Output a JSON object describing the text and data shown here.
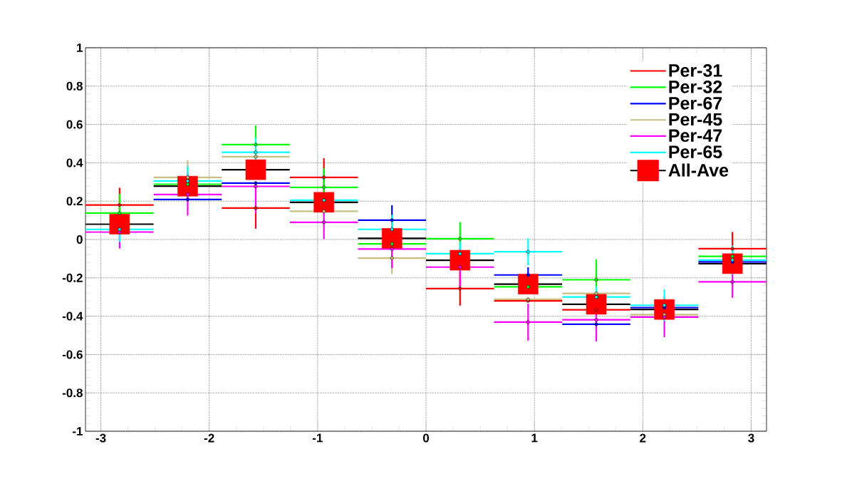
{
  "chart_data": {
    "type": "scatter",
    "x": [
      -2.827,
      -2.199,
      -1.571,
      -0.942,
      -0.314,
      0.314,
      0.942,
      1.571,
      2.199,
      2.827
    ],
    "xlim": [
      -3.1416,
      3.1416
    ],
    "xticks": [
      -3,
      -2,
      -1,
      0,
      1,
      2,
      3
    ],
    "ylim": [
      -1,
      1
    ],
    "yticks": [
      -1,
      -0.8,
      -0.6,
      -0.4,
      -0.2,
      0,
      0.2,
      0.4,
      0.6,
      0.8,
      1
    ],
    "grid": true,
    "legend": "top right",
    "marker": "circle",
    "series": [
      {
        "name": "Per-31",
        "color": "#ff0000",
        "values": [
          0.18,
          null,
          0.164,
          0.324,
          null,
          -0.256,
          -0.32,
          -0.367,
          null,
          -0.048
        ],
        "errors": [
          0.09,
          null,
          0.108,
          0.1,
          null,
          0.089,
          null,
          null,
          null,
          0.087
        ],
        "xerrors": [
          0.314,
          null,
          0.314,
          0.314,
          null,
          0.314,
          0.314,
          0.314,
          null,
          0.314
        ]
      },
      {
        "name": "Per-32",
        "color": "#00ff00",
        "values": [
          0.138,
          0.288,
          0.495,
          0.272,
          -0.023,
          0.004,
          -0.247,
          -0.21,
          null,
          -0.088
        ],
        "errors": [
          0.1,
          null,
          0.1,
          0.1,
          null,
          0.087,
          null,
          0.107,
          null,
          null
        ],
        "xerrors": [
          0.314,
          0.314,
          0.314,
          0.314,
          0.314,
          0.314,
          0.314,
          0.314,
          null,
          0.314
        ]
      },
      {
        "name": "Per-67",
        "color": "#0000ff",
        "values": [
          null,
          0.209,
          0.294,
          null,
          0.101,
          null,
          -0.185,
          -0.442,
          -0.355,
          -0.117
        ],
        "errors": [
          null,
          null,
          null,
          null,
          0.078,
          null,
          0.04,
          null,
          null,
          null
        ],
        "xerrors": [
          null,
          0.314,
          0.314,
          null,
          0.314,
          null,
          0.314,
          0.314,
          0.314,
          0.314
        ]
      },
      {
        "name": "Per-45",
        "color": "#c8c080",
        "values": [
          null,
          0.324,
          0.432,
          0.147,
          -0.097,
          null,
          -0.312,
          -0.281,
          -0.392,
          null
        ],
        "errors": [
          null,
          0.09,
          null,
          null,
          0.083,
          null,
          null,
          null,
          null,
          null
        ],
        "xerrors": [
          null,
          0.314,
          0.314,
          0.314,
          0.314,
          null,
          0.314,
          0.314,
          0.314,
          null
        ]
      },
      {
        "name": "Per-47",
        "color": "#ff00ff",
        "values": [
          0.039,
          0.235,
          0.277,
          0.09,
          -0.05,
          -0.144,
          -0.431,
          -0.419,
          -0.405,
          -0.221
        ],
        "errors": [
          0.086,
          0.11,
          [
            0.137,
            0.277
          ],
          0.088,
          0.1,
          0.1,
          0.096,
          [
            -0.531,
            -0.387
          ],
          0.104,
          0.083
        ],
        "xerrors": [
          0.314,
          0.314,
          0.314,
          0.314,
          0.314,
          0.314,
          0.314,
          0.314,
          0.314,
          0.314
        ]
      },
      {
        "name": "Per-65",
        "color": "#00ffff",
        "values": [
          0.053,
          0.305,
          0.455,
          0.205,
          0.053,
          -0.074,
          -0.064,
          -0.3,
          -0.343,
          -0.107
        ],
        "errors": [
          0.066,
          0.075,
          0.075,
          null,
          0.075,
          0.06,
          0.07,
          0.055,
          0.083,
          0.075
        ],
        "xerrors": [
          0.314,
          0.314,
          0.314,
          0.314,
          0.314,
          0.314,
          0.314,
          0.314,
          0.314,
          0.314
        ]
      },
      {
        "name": "All-Ave",
        "color": "#ff0000",
        "marker": "square",
        "values": [
          0.08,
          0.278,
          0.364,
          0.194,
          0.006,
          -0.108,
          -0.233,
          -0.338,
          -0.365,
          -0.126
        ],
        "xerrors": [
          0.314,
          0.314,
          0.314,
          0.314,
          0.314,
          0.314,
          0.314,
          0.314,
          0.314,
          0.314
        ]
      }
    ]
  }
}
